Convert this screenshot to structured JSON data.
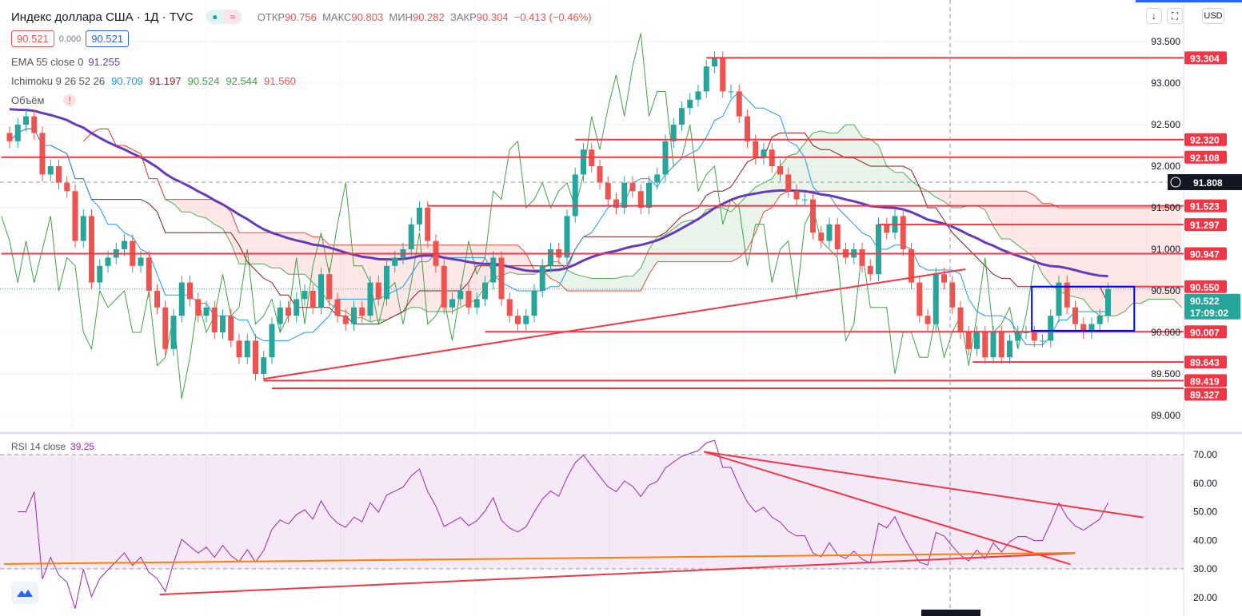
{
  "header": {
    "title": "Индекс доллара США · 1Д · TVC",
    "open_label": "ОТКР",
    "open": "90.756",
    "high_label": "МАКС",
    "high": "90.803",
    "low_label": "МИН",
    "low": "90.282",
    "close_label": "ЗАКР",
    "close": "90.304",
    "change": "−0.413 (−0.46%)",
    "sell": "90.521",
    "spread": "0.000",
    "buy": "90.521",
    "pill_icon": "≈"
  },
  "indicators": {
    "ema_label": "EMA 55 close 0",
    "ema_value": "91.255",
    "ichimoku_label": "Ichimoku 9 26 52 26",
    "ichi_values": [
      "90.709",
      "91.197",
      "90.524",
      "92.544",
      "91.560"
    ],
    "volume_label": "Объём",
    "volume_warning": "!",
    "rsi_label": "RSI 14 close",
    "rsi_value": "39.25"
  },
  "toolbar": {
    "scroll_icon": "↓",
    "fullscreen_icon": "⛶",
    "currency": "USD"
  },
  "colors": {
    "up": "#26a69a",
    "down": "#ef5350",
    "ema": "#673ab7",
    "tenkan": "#2196f3",
    "kijun": "#8b1a1a",
    "chikou": "#43a047",
    "spanA": "#4caf50",
    "spanB": "#f44336",
    "level": "#f23645",
    "rsi": "#9c27b0",
    "orange": "#ff7f00"
  },
  "chart_data": [
    {
      "type": "candlestick",
      "title": "Индекс доллара США · 1Д · TVC",
      "ylim": [
        88.8,
        93.7
      ],
      "y_ticks": [
        89.0,
        89.5,
        90.0,
        90.5,
        91.0,
        91.5,
        92.0,
        92.5,
        93.0,
        93.5
      ],
      "closes": [
        92.3,
        92.5,
        92.6,
        92.4,
        91.9,
        92.0,
        91.8,
        91.7,
        91.1,
        91.4,
        90.6,
        90.8,
        90.9,
        91.0,
        91.1,
        90.8,
        90.9,
        90.5,
        90.3,
        89.8,
        90.2,
        90.6,
        90.4,
        90.2,
        90.3,
        90.0,
        90.2,
        89.9,
        89.7,
        89.9,
        89.5,
        89.7,
        90.1,
        90.3,
        90.2,
        90.4,
        90.5,
        90.3,
        90.7,
        90.4,
        90.2,
        90.1,
        90.3,
        90.2,
        90.6,
        90.4,
        90.8,
        90.9,
        91.0,
        91.3,
        91.5,
        91.1,
        90.8,
        90.3,
        90.4,
        90.5,
        90.3,
        90.4,
        90.6,
        90.9,
        90.4,
        90.2,
        90.1,
        90.2,
        90.5,
        90.8,
        91.0,
        90.9,
        91.4,
        91.9,
        92.2,
        92.0,
        91.8,
        91.6,
        91.5,
        91.8,
        91.7,
        91.5,
        91.8,
        91.9,
        92.3,
        92.5,
        92.7,
        92.8,
        92.9,
        93.2,
        93.3,
        92.9,
        92.9,
        92.6,
        92.3,
        92.1,
        92.2,
        92.0,
        91.9,
        91.7,
        91.6,
        91.6,
        91.2,
        91.1,
        91.3,
        91.0,
        90.9,
        91.0,
        90.8,
        90.7,
        91.3,
        91.2,
        91.4,
        91.0,
        90.6,
        90.2,
        90.1,
        90.7,
        90.6,
        90.3,
        90.0,
        89.8,
        90.0,
        89.7,
        90.0,
        89.7,
        89.9,
        90.0,
        90.0,
        89.9,
        89.9,
        90.2,
        90.6,
        90.3,
        90.1,
        90.0,
        90.1,
        90.2,
        90.52
      ],
      "levels": [
        {
          "price": 93.304,
          "label": "93.304",
          "from_bar": 85
        },
        {
          "price": 92.32,
          "label": "92.320",
          "from_bar": 69
        },
        {
          "price": 92.108,
          "label": "92.108",
          "from_bar": -1
        },
        {
          "price": 91.523,
          "label": "91.523",
          "from_bar": 51
        },
        {
          "price": 91.297,
          "label": "91.297",
          "from_bar": 106
        },
        {
          "price": 90.947,
          "label": "90.947",
          "from_bar": -1
        },
        {
          "price": 90.55,
          "label": "90.550",
          "from_bar": 124.7
        },
        {
          "price": 90.007,
          "label": "90.007",
          "from_bar": 58
        },
        {
          "price": 89.643,
          "label": "89.643",
          "from_bar": 117.5
        },
        {
          "price": 89.419,
          "label": "89.419",
          "from_bar": 31
        },
        {
          "price": 89.327,
          "label": "89.327",
          "from_bar": 32
        }
      ],
      "crosshair_price": "91.808",
      "last_price": "90.522",
      "countdown": "17:09:02",
      "trendlines": [
        {
          "from": [
            31,
            89.44
          ],
          "to": [
            116.6,
            90.76
          ]
        }
      ],
      "box": {
        "from_bar": 124.7,
        "to_bar": 137.2,
        "top": 90.55,
        "bottom": 90.02
      }
    },
    {
      "type": "line",
      "title": "RSI 14 close",
      "ylim": [
        15,
        73
      ],
      "y_ticks": [
        20,
        30,
        40,
        50,
        60,
        70
      ],
      "band": [
        30,
        70
      ],
      "trendlines": [
        {
          "from": [
            18.3,
            21
          ],
          "to": [
            130,
            35.5
          ],
          "color": "#f23645"
        },
        {
          "from": [
            84.7,
            71
          ],
          "to": [
            138.3,
            48
          ],
          "color": "#f23645"
        },
        {
          "from": [
            84.7,
            71
          ],
          "to": [
            129.4,
            31.6
          ],
          "color": "#f23645"
        },
        {
          "from": [
            -0.7,
            31.7
          ],
          "to": [
            130,
            35.6
          ],
          "color": "#ff7f00"
        }
      ]
    }
  ]
}
